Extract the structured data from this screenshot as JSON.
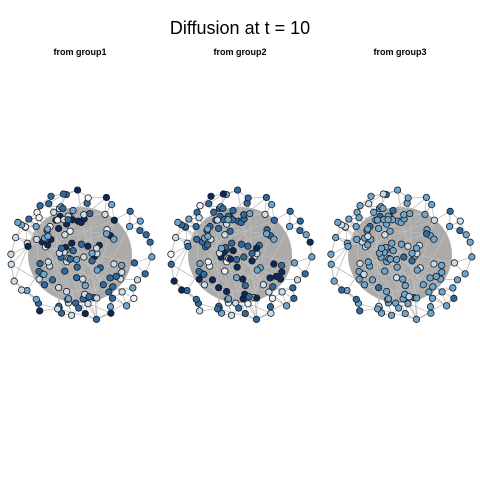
{
  "figure": {
    "title": "Diffusion at t = 10",
    "panels": [
      {
        "title": "from group1"
      },
      {
        "title": "from group2"
      },
      {
        "title": "from group3"
      }
    ]
  },
  "colors": {
    "edge": "#bdbdbd",
    "core_fill": "#9c9c9c",
    "node_stroke": "#1a1a1a",
    "shade_dark": "#0b2a5b",
    "shade_mid": "#2f6aa3",
    "shade_light": "#6fa6cf",
    "shade_pale": "#c9dcec",
    "shade_white": "#eef4fa"
  }
}
